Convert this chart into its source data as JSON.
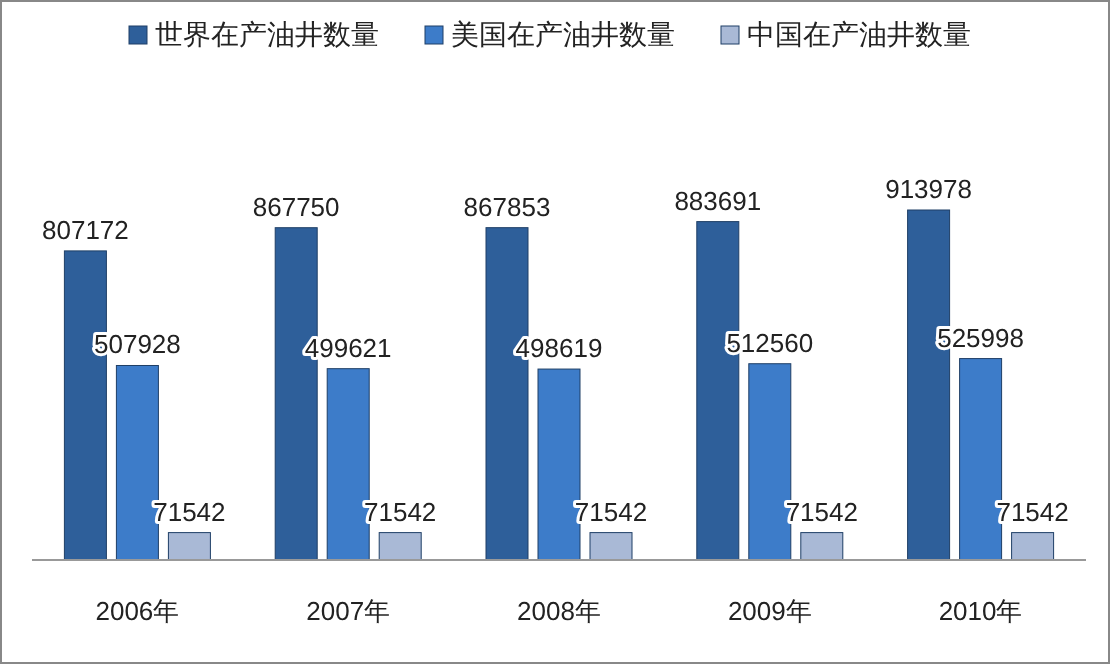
{
  "chart_data": {
    "type": "bar",
    "categories": [
      "2006年",
      "2007年",
      "2008年",
      "2009年",
      "2010年"
    ],
    "series": [
      {
        "name": "世界在产油井数量",
        "color": "#2e5f9a",
        "values": [
          807172,
          867750,
          867853,
          883691,
          913978
        ]
      },
      {
        "name": "美国在产油井数量",
        "color": "#3d7cc9",
        "values": [
          507928,
          499621,
          498619,
          512560,
          525998
        ]
      },
      {
        "name": "中国在产油井数量",
        "color": "#a9b9d6",
        "values": [
          71542,
          71542,
          71542,
          71542,
          71542
        ]
      }
    ],
    "data_labels": true,
    "legend": "top"
  }
}
